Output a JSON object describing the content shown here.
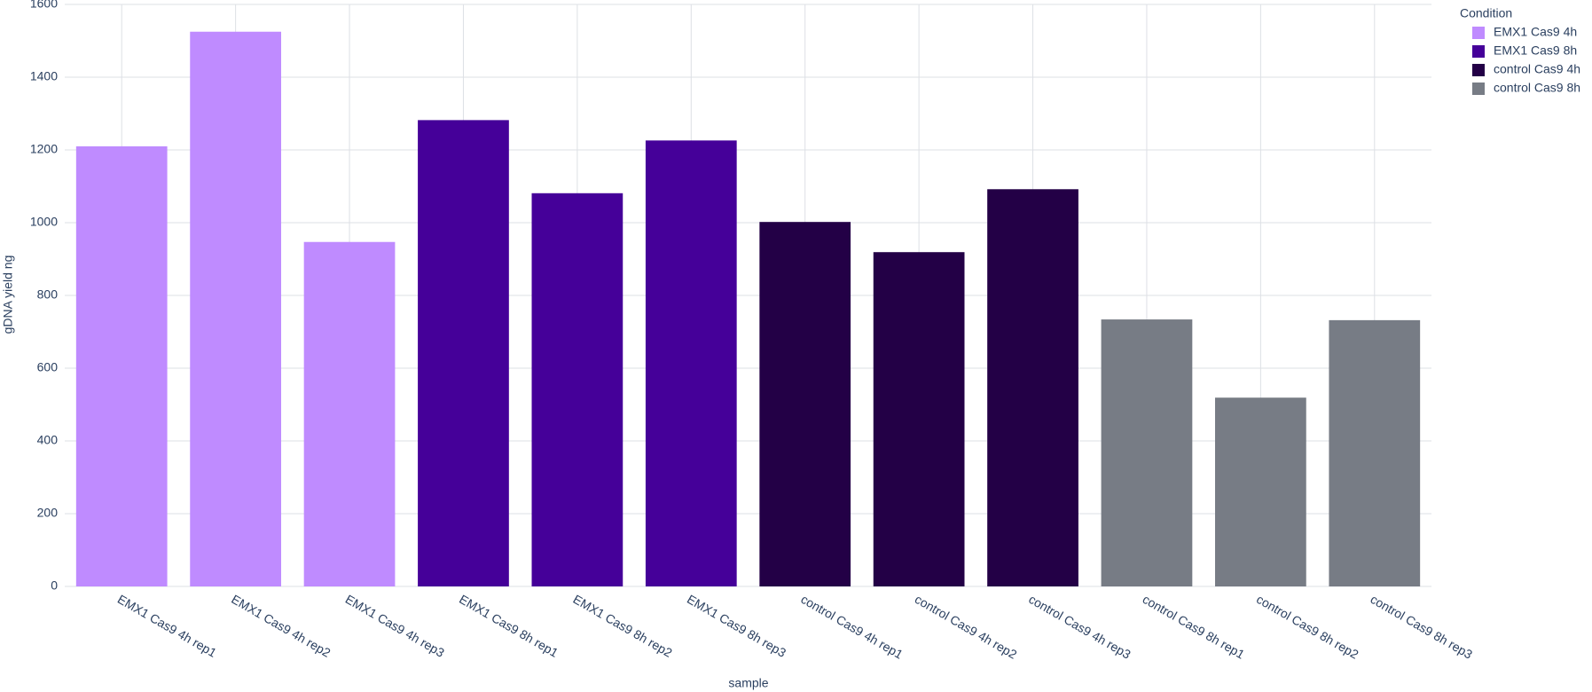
{
  "chart_data": {
    "type": "bar",
    "xlabel": "sample",
    "ylabel": "gDNA yield ng",
    "legend_title": "Condition",
    "categories": [
      "EMX1 Cas9 4h rep1",
      "EMX1 Cas9 4h rep2",
      "EMX1 Cas9 4h rep3",
      "EMX1 Cas9 8h rep1",
      "EMX1 Cas9 8h rep2",
      "EMX1 Cas9 8h rep3",
      "control Cas9 4h rep1",
      "control Cas9 4h rep2",
      "control Cas9 4h rep3",
      "control Cas9 8h rep1",
      "control Cas9 8h rep2",
      "control Cas9 8h rep3"
    ],
    "series": [
      {
        "name": "EMX1 Cas9 4h",
        "color": "#bf8bff",
        "values": [
          1210,
          1525,
          947,
          null,
          null,
          null,
          null,
          null,
          null,
          null,
          null,
          null
        ]
      },
      {
        "name": "EMX1 Cas9 8h",
        "color": "#450099",
        "values": [
          null,
          null,
          null,
          1282,
          1081,
          1226,
          null,
          null,
          null,
          null,
          null,
          null
        ]
      },
      {
        "name": "control Cas9 4h",
        "color": "#230046",
        "values": [
          null,
          null,
          null,
          null,
          null,
          null,
          1002,
          919,
          1092,
          null,
          null,
          null
        ]
      },
      {
        "name": "control Cas9 8h",
        "color": "#777c85",
        "values": [
          null,
          null,
          null,
          null,
          null,
          null,
          null,
          null,
          null,
          734,
          519,
          732
        ]
      }
    ],
    "ylim": [
      0,
      1600
    ],
    "yticks": [
      0,
      200,
      400,
      600,
      800,
      1000,
      1200,
      1400,
      1600
    ],
    "grid": true,
    "legend": "right"
  }
}
